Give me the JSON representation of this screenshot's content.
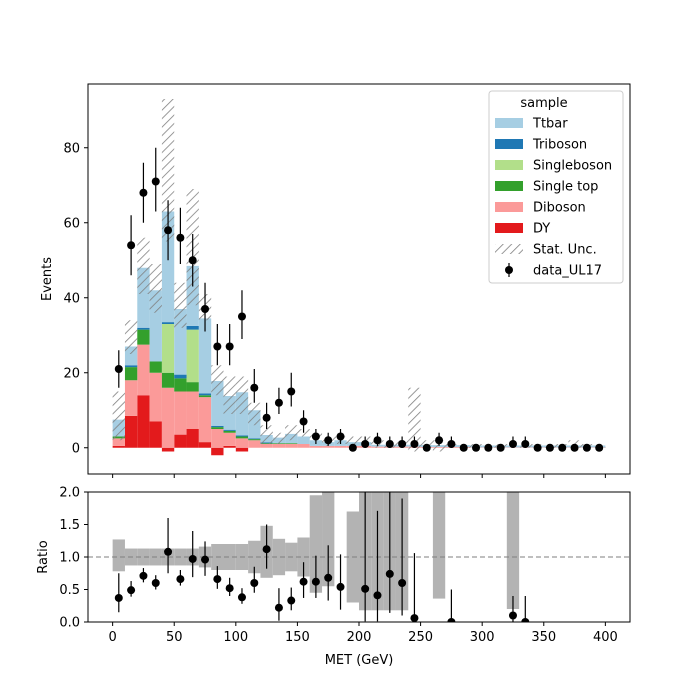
{
  "chart_data": [
    {
      "type": "bar",
      "panel": "main",
      "stacked": true,
      "ylabel": "Events",
      "xlim": [
        -20,
        420
      ],
      "ylim": [
        -7,
        97
      ],
      "yticks": [
        0,
        20,
        40,
        60,
        80
      ],
      "bin_edges": [
        0,
        10,
        20,
        30,
        40,
        50,
        60,
        70,
        80,
        90,
        100,
        110,
        120,
        130,
        140,
        150,
        160,
        170,
        180,
        190,
        200,
        210,
        220,
        230,
        240,
        250,
        260,
        270,
        280,
        290,
        300,
        310,
        320,
        330,
        340,
        350,
        360,
        370,
        380,
        390,
        400
      ],
      "legend": {
        "title": "sample",
        "placement": "top-right",
        "entries": [
          {
            "label": "Ttbar",
            "kind": "fill",
            "color": "#a6cee3"
          },
          {
            "label": "Triboson",
            "kind": "fill",
            "color": "#1f78b4"
          },
          {
            "label": "Singleboson",
            "kind": "fill",
            "color": "#b2df8a"
          },
          {
            "label": "Single top",
            "kind": "fill",
            "color": "#33a02c"
          },
          {
            "label": "Diboson",
            "kind": "fill",
            "color": "#fb9a99"
          },
          {
            "label": "DY",
            "kind": "fill",
            "color": "#e31a1c"
          },
          {
            "label": "Stat. Unc.",
            "kind": "hatch",
            "color": "#808080"
          },
          {
            "label": "data_UL17",
            "kind": "errorbar",
            "color": "#000000"
          }
        ]
      },
      "series": [
        {
          "name": "DY",
          "color": "#e31a1c",
          "values": [
            0.5,
            8.5,
            14,
            7,
            -1,
            3.5,
            5,
            1.5,
            -2,
            0.5,
            -1,
            0,
            0,
            0,
            0,
            0,
            0,
            0,
            0,
            0,
            0,
            0,
            0,
            0,
            0,
            0,
            0,
            0,
            0,
            0,
            0,
            0,
            0,
            0,
            0,
            0,
            0,
            0,
            0,
            0
          ]
        },
        {
          "name": "Diboson",
          "color": "#fb9a99",
          "values": [
            2,
            9.5,
            13.5,
            13,
            16,
            11.5,
            10,
            12,
            5,
            3.5,
            2.5,
            2,
            1,
            1,
            1,
            1,
            0.5,
            0.5,
            0.5,
            0.5,
            0.5,
            0.3,
            0.3,
            0.3,
            0.3,
            0.2,
            0.2,
            0.2,
            0.2,
            0.1,
            0.1,
            0.1,
            0.1,
            0.1,
            0.1,
            0.1,
            0.1,
            0.1,
            0.1,
            0.1
          ]
        },
        {
          "name": "Single top",
          "color": "#33a02c",
          "values": [
            0.5,
            3.5,
            4,
            3,
            4,
            3.5,
            2.5,
            0.5,
            0.5,
            0.5,
            0.5,
            0.3,
            0.2,
            0.2,
            0.2,
            0,
            0,
            0,
            0,
            0,
            0,
            0,
            0,
            0,
            0,
            0,
            0,
            0,
            0,
            0,
            0,
            0,
            0,
            0,
            0,
            0,
            0,
            0,
            0,
            0
          ]
        },
        {
          "name": "Singleboson",
          "color": "#b2df8a",
          "values": [
            0,
            0,
            0,
            0,
            13,
            0,
            14,
            0,
            0,
            0,
            0,
            0,
            0,
            0,
            0,
            0,
            0,
            0,
            0,
            0,
            0,
            0,
            0,
            0,
            0,
            0,
            0,
            0,
            0,
            0,
            0,
            0,
            0,
            0,
            0,
            0,
            0,
            0,
            0,
            0
          ]
        },
        {
          "name": "Triboson",
          "color": "#1f78b4",
          "values": [
            0,
            0.5,
            0.5,
            0,
            0.5,
            1,
            1,
            0.5,
            0.3,
            0.3,
            0.3,
            0.2,
            0.2,
            0,
            0,
            0,
            0,
            0,
            0,
            0,
            0,
            0,
            0,
            0,
            0,
            0,
            0,
            0,
            0,
            0,
            0,
            0,
            0,
            0,
            0,
            0,
            0,
            0,
            0,
            0
          ]
        },
        {
          "name": "Ttbar",
          "color": "#a6cee3",
          "values": [
            4.5,
            5,
            16,
            19,
            29.5,
            17.5,
            16,
            20,
            12,
            9,
            11.5,
            7.5,
            2,
            1.5,
            2.5,
            2,
            1.5,
            1,
            1.5,
            1,
            1,
            0.5,
            0.5,
            0.5,
            0.5,
            0.5,
            0.5,
            0.5,
            0.5,
            0.5,
            0.5,
            0.5,
            0.5,
            0.5,
            0.5,
            0.5,
            0.5,
            0.5,
            0.5,
            0.5
          ]
        }
      ],
      "stat_unc": [
        [
          2,
          15
        ],
        [
          25,
          34
        ],
        [
          41,
          56
        ],
        [
          36,
          49
        ],
        [
          55,
          93
        ],
        [
          32,
          44
        ],
        [
          38,
          69
        ],
        [
          34,
          41
        ],
        [
          14,
          22
        ],
        [
          9,
          19
        ],
        [
          9,
          19
        ],
        [
          6,
          12
        ],
        [
          1,
          6
        ],
        [
          1,
          4
        ],
        [
          2,
          6
        ],
        [
          3,
          5
        ],
        [
          2,
          4
        ],
        [
          0.5,
          3
        ],
        [
          1,
          3
        ],
        [
          1,
          3
        ],
        [
          1,
          3
        ],
        [
          0,
          2
        ],
        [
          0,
          2
        ],
        [
          0,
          2
        ],
        [
          -1,
          16
        ],
        [
          0,
          2
        ],
        [
          -1,
          2
        ],
        [
          0,
          1
        ],
        [
          0,
          1
        ],
        [
          0,
          1
        ],
        [
          0,
          1
        ],
        [
          0,
          1
        ],
        [
          0,
          1
        ],
        [
          0,
          1
        ],
        [
          0,
          1
        ],
        [
          0,
          1
        ],
        [
          0,
          1
        ],
        [
          0,
          2
        ],
        [
          0,
          1
        ],
        [
          0,
          1
        ]
      ],
      "data_points": {
        "name": "data_UL17",
        "x": [
          5,
          15,
          25,
          35,
          45,
          55,
          65,
          75,
          85,
          95,
          105,
          115,
          125,
          135,
          145,
          155,
          165,
          175,
          185,
          195,
          205,
          215,
          225,
          235,
          245,
          255,
          265,
          275,
          285,
          295,
          305,
          315,
          325,
          335,
          345,
          355,
          365,
          375,
          385,
          395
        ],
        "y": [
          21,
          54,
          68,
          71,
          58,
          56,
          50,
          37,
          27,
          27,
          35,
          16,
          8,
          12,
          15,
          7,
          3,
          2,
          3,
          0,
          1,
          2,
          1,
          1,
          1,
          0,
          2,
          1,
          0,
          0,
          0,
          0,
          1,
          1,
          0,
          0,
          0,
          0,
          0,
          0
        ],
        "err_low": [
          5,
          8,
          8,
          8,
          8,
          7,
          7,
          6,
          5,
          5,
          6,
          4,
          3,
          3,
          4,
          3,
          2,
          1.5,
          2,
          0,
          1,
          1.5,
          1,
          1,
          1,
          0,
          1.5,
          1,
          0,
          0,
          0,
          0,
          1,
          1,
          0,
          0,
          0,
          0,
          0,
          0
        ],
        "err_high": [
          5,
          8,
          8,
          9,
          8,
          8,
          7,
          7,
          6,
          6,
          7,
          5,
          4,
          4,
          5,
          3,
          2,
          2,
          2,
          1,
          2,
          2,
          2,
          2,
          2,
          1,
          2,
          2,
          1,
          1,
          1,
          1,
          2,
          2,
          1,
          1,
          1,
          1,
          1,
          1
        ]
      }
    },
    {
      "type": "scatter",
      "panel": "ratio",
      "xlabel": "MET (GeV)",
      "ylabel": "Ratio",
      "xlim": [
        -20,
        420
      ],
      "ylim": [
        0,
        2.0
      ],
      "yticks": [
        0.0,
        0.5,
        1.0,
        1.5,
        2.0
      ],
      "ytick_labels": [
        "0.0",
        "0.5",
        "1.0",
        "1.5",
        "2.0"
      ],
      "xticks": [
        0,
        50,
        100,
        150,
        200,
        250,
        300,
        350,
        400
      ],
      "xtick_labels": [
        "0",
        "50",
        "100",
        "150",
        "200",
        "250",
        "300",
        "350",
        "400"
      ],
      "reference_line": 1.0,
      "unc_band": [
        [
          0.78,
          1.27
        ],
        [
          0.87,
          1.13
        ],
        [
          0.87,
          1.13
        ],
        [
          0.87,
          1.13
        ],
        [
          0.87,
          1.13
        ],
        [
          0.87,
          1.13
        ],
        [
          0.87,
          1.13
        ],
        [
          0.84,
          1.16
        ],
        [
          0.8,
          1.2
        ],
        [
          0.8,
          1.2
        ],
        [
          0.8,
          1.2
        ],
        [
          0.75,
          1.25
        ],
        [
          0.68,
          1.48
        ],
        [
          0.72,
          1.28
        ],
        [
          0.78,
          1.22
        ],
        [
          0.7,
          1.3
        ],
        [
          0.45,
          1.95
        ],
        [
          0.55,
          2.0
        ],
        [
          0,
          0
        ],
        [
          0.3,
          1.7
        ],
        [
          0.18,
          2.0
        ],
        [
          0.18,
          2.0
        ],
        [
          0.18,
          2.0
        ],
        [
          0.18,
          2.0
        ],
        [
          0,
          0
        ],
        [
          0,
          0
        ],
        [
          0.36,
          2.0
        ],
        [
          0,
          0
        ],
        [
          0,
          0
        ],
        [
          0,
          0
        ],
        [
          0,
          0
        ],
        [
          0,
          0
        ],
        [
          0.2,
          2.0
        ],
        [
          0,
          0
        ],
        [
          0,
          0
        ],
        [
          0,
          0
        ],
        [
          0,
          0
        ],
        [
          0,
          0
        ],
        [
          0,
          0
        ],
        [
          0,
          0
        ]
      ],
      "x": [
        5,
        15,
        25,
        35,
        45,
        55,
        65,
        75,
        85,
        95,
        105,
        115,
        125,
        135,
        145,
        155,
        165,
        175,
        185,
        205,
        215,
        225,
        235,
        245,
        275,
        325,
        335
      ],
      "y": [
        0.37,
        0.49,
        0.71,
        0.6,
        1.08,
        0.66,
        0.97,
        0.96,
        0.66,
        0.52,
        0.38,
        0.6,
        1.12,
        0.22,
        0.33,
        0.62,
        0.62,
        0.68,
        0.54,
        0.51,
        0.41,
        0.74,
        0.6,
        0.06,
        0.0,
        0.1,
        0.0
      ],
      "err_low": [
        0.22,
        0.1,
        0.1,
        0.1,
        0.33,
        0.1,
        0.28,
        0.25,
        0.15,
        0.12,
        0.1,
        0.15,
        0.3,
        0.2,
        0.15,
        0.25,
        0.25,
        0.35,
        0.35,
        0.5,
        0.4,
        0.6,
        0.5,
        0.06,
        0.0,
        0.1,
        0.0
      ],
      "err_high": [
        0.38,
        0.14,
        0.12,
        0.12,
        0.52,
        0.14,
        0.43,
        0.28,
        0.2,
        0.16,
        0.14,
        0.25,
        0.38,
        0.3,
        0.2,
        0.3,
        0.4,
        0.5,
        0.5,
        1.5,
        1.3,
        1.3,
        1.3,
        1.0,
        0.5,
        0.3,
        0.4
      ]
    }
  ]
}
